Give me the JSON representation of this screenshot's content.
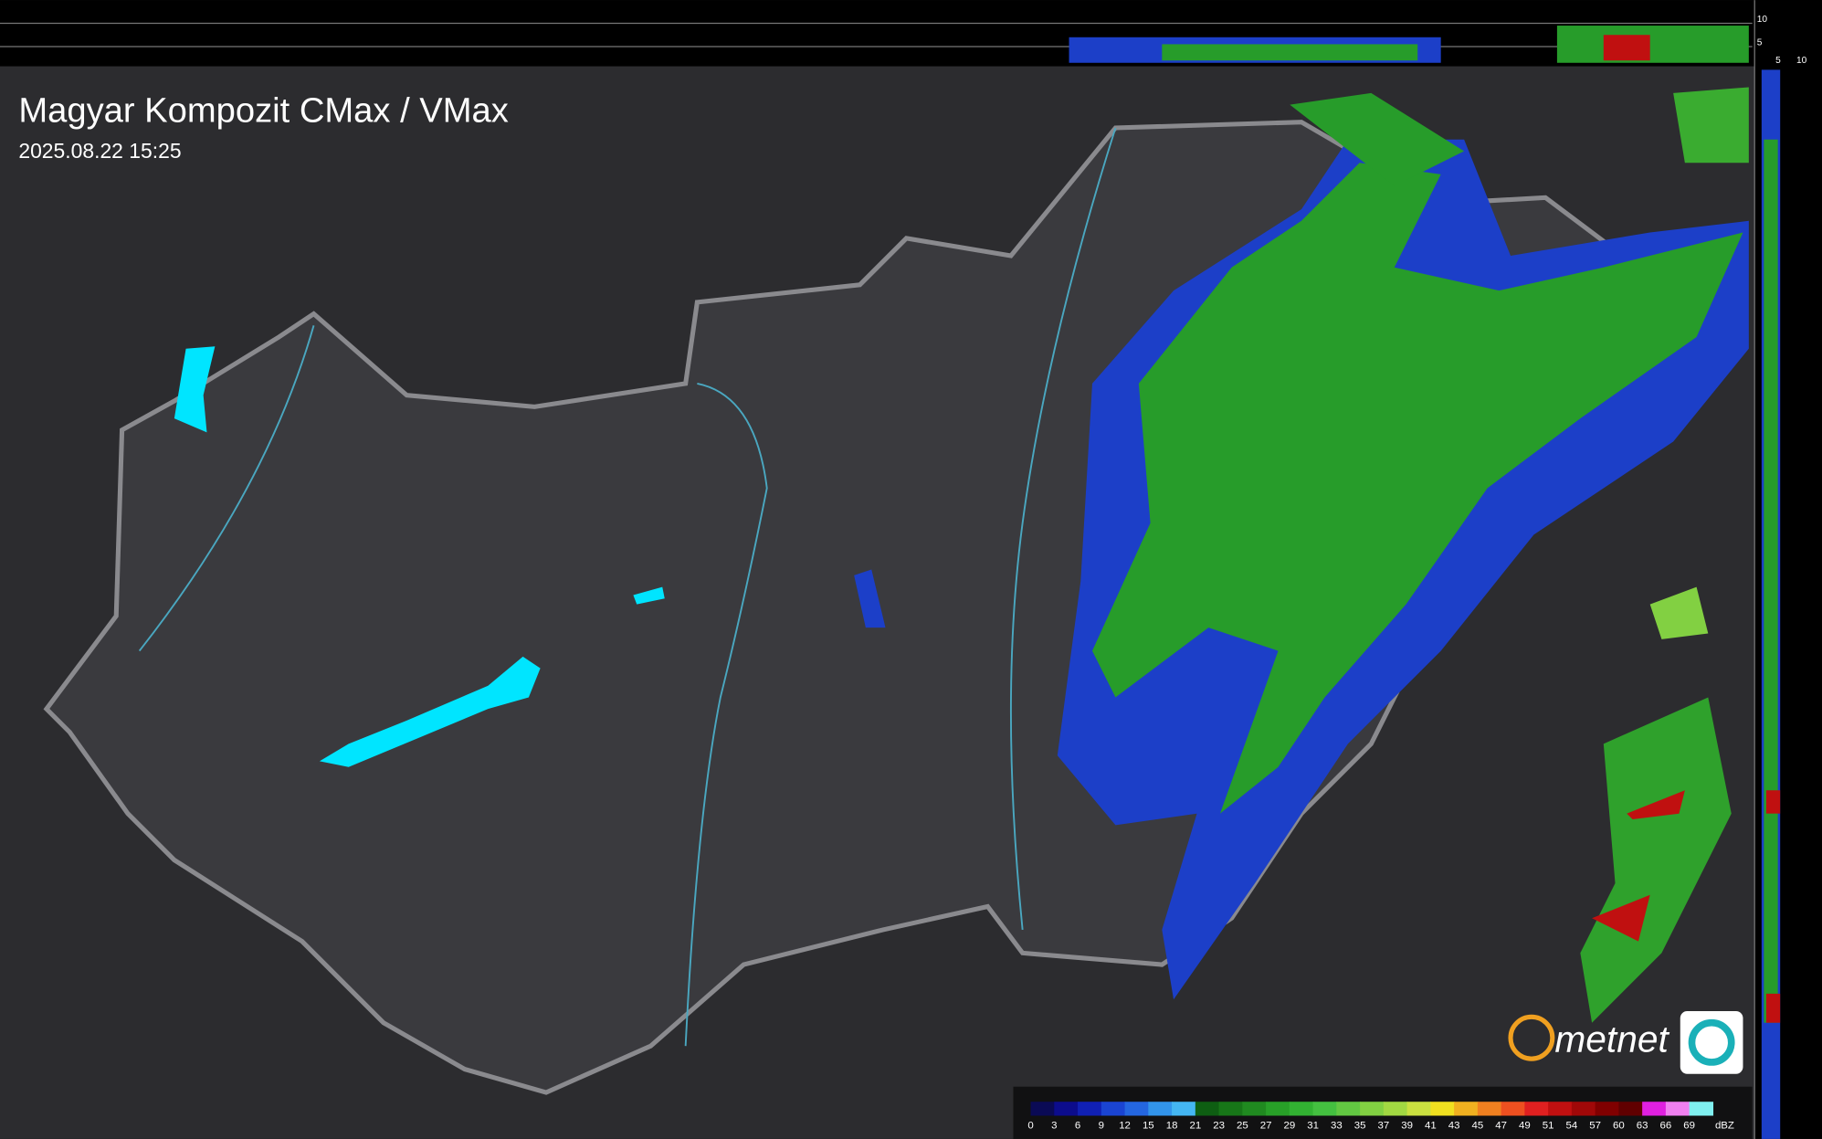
{
  "header": {
    "title": "Magyar Kompozit CMax / VMax",
    "timestamp": "2025.08.22 15:25"
  },
  "profile_axes": {
    "top_labels": [
      "10",
      "5"
    ],
    "side_labels": [
      "5",
      "10"
    ]
  },
  "logo": {
    "text": "metnet"
  },
  "legend": {
    "unit": "dBZ",
    "steps": [
      {
        "value": 0,
        "color": "#0a0a55"
      },
      {
        "value": 3,
        "color": "#0c0c8c"
      },
      {
        "value": 6,
        "color": "#1020b4"
      },
      {
        "value": 9,
        "color": "#1a44d2"
      },
      {
        "value": 12,
        "color": "#2466e0"
      },
      {
        "value": 15,
        "color": "#3294ea"
      },
      {
        "value": 18,
        "color": "#44b6f2"
      },
      {
        "value": 21,
        "color": "#0e5e12"
      },
      {
        "value": 23,
        "color": "#177618"
      },
      {
        "value": 25,
        "color": "#208a20"
      },
      {
        "value": 27,
        "color": "#28a028"
      },
      {
        "value": 29,
        "color": "#32b232"
      },
      {
        "value": 31,
        "color": "#44c040"
      },
      {
        "value": 33,
        "color": "#62c842"
      },
      {
        "value": 35,
        "color": "#82d042"
      },
      {
        "value": 37,
        "color": "#a2d842"
      },
      {
        "value": 39,
        "color": "#cae040"
      },
      {
        "value": 41,
        "color": "#f0e020"
      },
      {
        "value": 43,
        "color": "#f0b020"
      },
      {
        "value": 45,
        "color": "#f08020"
      },
      {
        "value": 47,
        "color": "#ee5020"
      },
      {
        "value": 49,
        "color": "#e02020"
      },
      {
        "value": 51,
        "color": "#c01010"
      },
      {
        "value": 54,
        "color": "#a00808"
      },
      {
        "value": 57,
        "color": "#800000"
      },
      {
        "value": 60,
        "color": "#600000"
      },
      {
        "value": 63,
        "color": "#e020e0"
      },
      {
        "value": 66,
        "color": "#f080f0"
      },
      {
        "value": 69,
        "color": "#80f0f0"
      }
    ]
  }
}
